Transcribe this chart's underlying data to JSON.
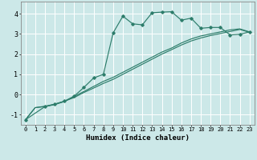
{
  "xlabel": "Humidex (Indice chaleur)",
  "bg_color": "#cce8e8",
  "grid_color": "#ffffff",
  "line_color": "#2d7d6b",
  "xlim": [
    -0.5,
    23.5
  ],
  "ylim": [
    -1.5,
    4.6
  ],
  "xticks": [
    0,
    1,
    2,
    3,
    4,
    5,
    6,
    7,
    8,
    9,
    10,
    11,
    12,
    13,
    14,
    15,
    16,
    17,
    18,
    19,
    20,
    21,
    22,
    23
  ],
  "yticks": [
    -1,
    0,
    1,
    2,
    3,
    4
  ],
  "series1_x": [
    0,
    1,
    2,
    3,
    4,
    5,
    6,
    7,
    8,
    9,
    10,
    11,
    12,
    13,
    14,
    15,
    16,
    17,
    18,
    19,
    20,
    21,
    22,
    23
  ],
  "series1_y": [
    -1.25,
    -0.65,
    -0.6,
    -0.5,
    -0.35,
    -0.1,
    0.15,
    0.4,
    0.65,
    0.85,
    1.1,
    1.35,
    1.6,
    1.85,
    2.1,
    2.3,
    2.55,
    2.75,
    2.9,
    3.0,
    3.1,
    3.2,
    3.25,
    3.1
  ],
  "series2_x": [
    0,
    1,
    2,
    3,
    4,
    5,
    6,
    7,
    8,
    9,
    10,
    11,
    12,
    13,
    14,
    15,
    16,
    17,
    18,
    19,
    20,
    21,
    22,
    23
  ],
  "series2_y": [
    -1.25,
    -0.65,
    -0.58,
    -0.48,
    -0.33,
    -0.15,
    0.1,
    0.32,
    0.55,
    0.75,
    1.0,
    1.25,
    1.5,
    1.75,
    2.0,
    2.22,
    2.45,
    2.65,
    2.8,
    2.92,
    3.02,
    3.12,
    3.22,
    3.08
  ],
  "series3_x": [
    0,
    2,
    3,
    4,
    5,
    6,
    7,
    8,
    9,
    10,
    11,
    12,
    13,
    14,
    15,
    16,
    17,
    18,
    19,
    20,
    21,
    22,
    23
  ],
  "series3_y": [
    -1.25,
    -0.6,
    -0.48,
    -0.33,
    -0.08,
    0.35,
    0.82,
    1.0,
    3.05,
    3.88,
    3.5,
    3.45,
    4.05,
    4.08,
    4.1,
    3.68,
    3.78,
    3.28,
    3.32,
    3.32,
    2.95,
    2.98,
    3.1
  ]
}
